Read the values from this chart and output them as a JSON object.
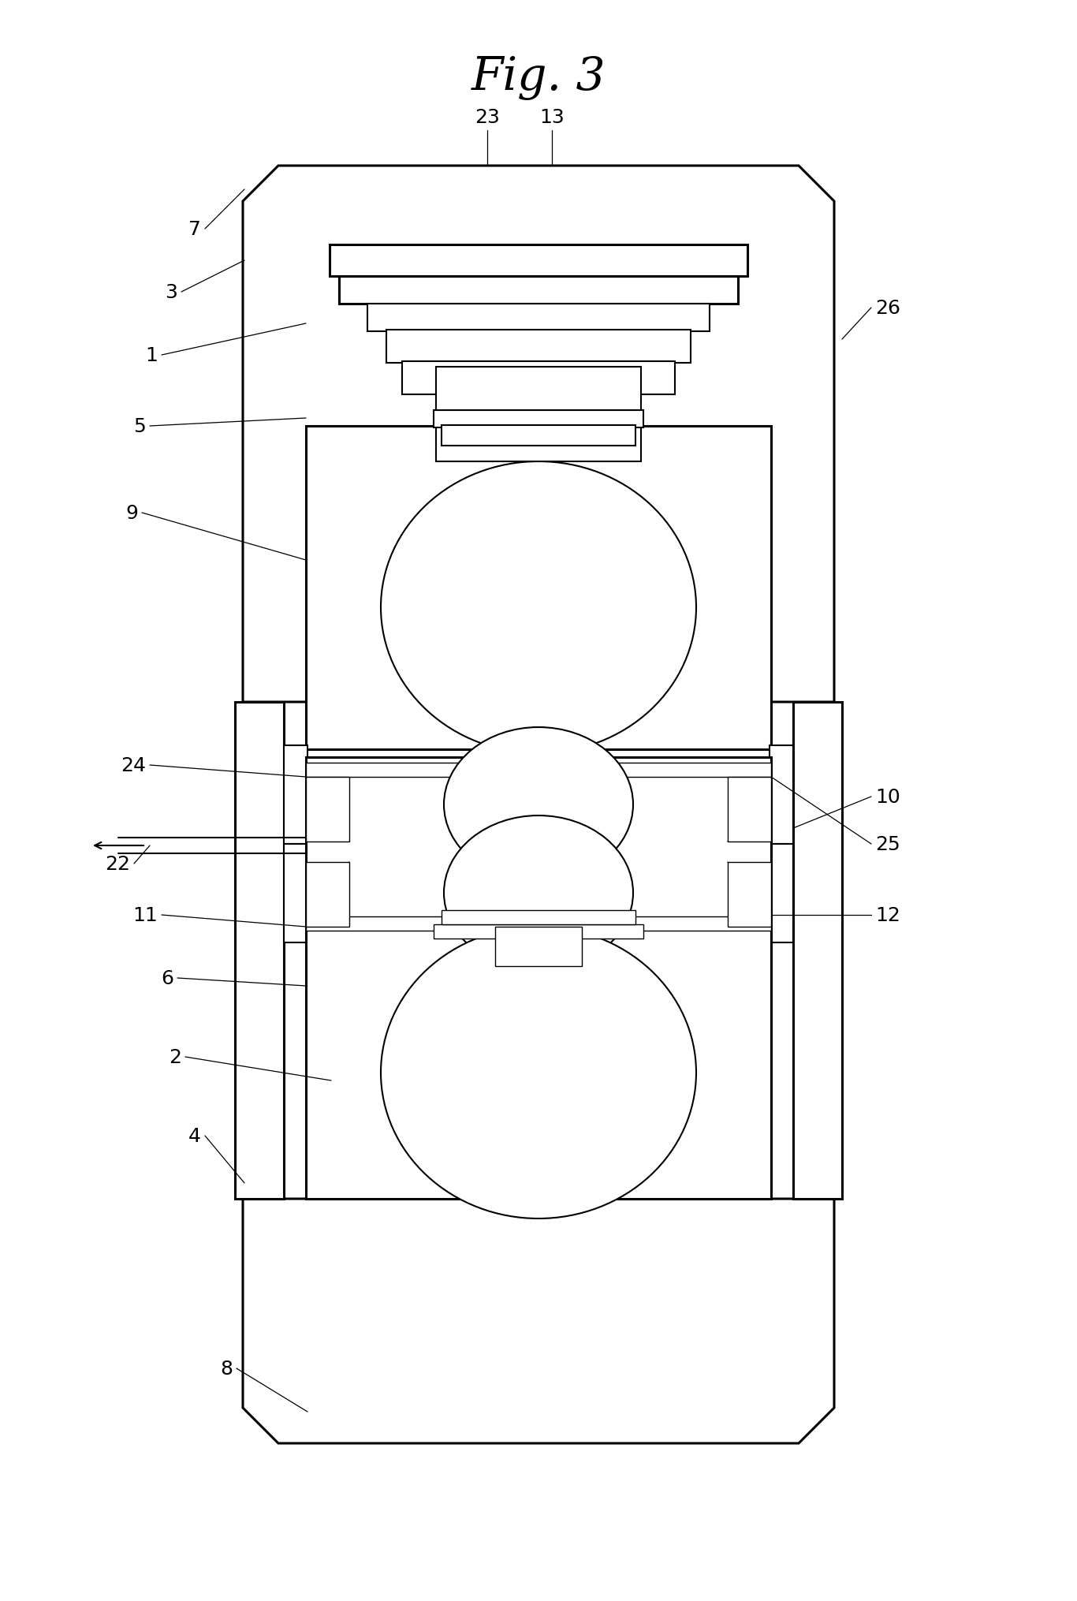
{
  "title": "Fig. 3",
  "bg_color": "#ffffff",
  "line_color": "#000000",
  "lw_thick": 2.2,
  "lw_medium": 1.5,
  "lw_thin": 1.0,
  "label_fontsize": 18
}
